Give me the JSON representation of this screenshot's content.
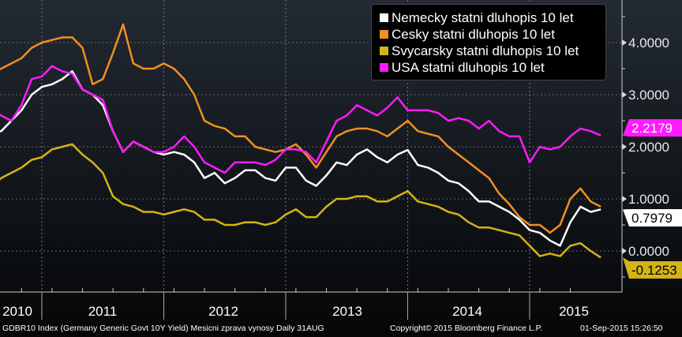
{
  "chart_data": {
    "type": "line",
    "x": [
      "2010-08",
      "2010-09",
      "2010-10",
      "2010-11",
      "2010-12",
      "2011-01",
      "2011-02",
      "2011-03",
      "2011-04",
      "2011-05",
      "2011-06",
      "2011-07",
      "2011-08",
      "2011-09",
      "2011-10",
      "2011-11",
      "2011-12",
      "2012-01",
      "2012-02",
      "2012-03",
      "2012-04",
      "2012-05",
      "2012-06",
      "2012-07",
      "2012-08",
      "2012-09",
      "2012-10",
      "2012-11",
      "2012-12",
      "2013-01",
      "2013-02",
      "2013-03",
      "2013-04",
      "2013-05",
      "2013-06",
      "2013-07",
      "2013-08",
      "2013-09",
      "2013-10",
      "2013-11",
      "2013-12",
      "2014-01",
      "2014-02",
      "2014-03",
      "2014-04",
      "2014-05",
      "2014-06",
      "2014-07",
      "2014-08",
      "2014-09",
      "2014-10",
      "2014-11",
      "2014-12",
      "2015-01",
      "2015-02",
      "2015-03",
      "2015-04",
      "2015-05",
      "2015-06",
      "2015-07",
      "2015-08"
    ],
    "series": [
      {
        "name": "Nemecky statni dluhopis 10 let",
        "color": "#ffffff",
        "last_label": "0.7979",
        "last_label_text": "#000000",
        "values": [
          2.3,
          2.3,
          2.5,
          2.7,
          3.0,
          3.15,
          3.2,
          3.3,
          3.45,
          3.1,
          3.0,
          2.8,
          2.3,
          1.9,
          2.1,
          2.0,
          1.9,
          1.85,
          1.9,
          1.85,
          1.7,
          1.4,
          1.5,
          1.3,
          1.4,
          1.55,
          1.55,
          1.4,
          1.35,
          1.6,
          1.6,
          1.35,
          1.25,
          1.45,
          1.7,
          1.65,
          1.85,
          1.95,
          1.8,
          1.7,
          1.85,
          1.94,
          1.65,
          1.6,
          1.5,
          1.35,
          1.3,
          1.15,
          0.95,
          0.95,
          0.85,
          0.75,
          0.6,
          0.4,
          0.35,
          0.2,
          0.1,
          0.55,
          0.85,
          0.75,
          0.7979
        ]
      },
      {
        "name": "Cesky statni dluhopis 10 let",
        "color": "#f0901e",
        "last_label": "",
        "last_label_text": "#000000",
        "values": [
          3.4,
          3.5,
          3.6,
          3.7,
          3.9,
          4.0,
          4.05,
          4.1,
          4.1,
          3.9,
          3.2,
          3.3,
          3.8,
          4.35,
          3.6,
          3.5,
          3.5,
          3.6,
          3.5,
          3.3,
          3.0,
          2.5,
          2.4,
          2.35,
          2.2,
          2.2,
          2.0,
          1.95,
          1.9,
          1.95,
          2.05,
          1.85,
          1.6,
          1.9,
          2.2,
          2.3,
          2.35,
          2.35,
          2.3,
          2.2,
          2.35,
          2.5,
          2.3,
          2.25,
          2.2,
          2.0,
          1.85,
          1.7,
          1.55,
          1.4,
          1.1,
          0.9,
          0.65,
          0.5,
          0.5,
          0.35,
          0.5,
          1.0,
          1.2,
          0.95,
          0.85
        ]
      },
      {
        "name": "Svycarsky statni dluhopis 10 let",
        "color": "#d4b414",
        "last_label": "-0.1253",
        "last_label_text": "#000000",
        "values": [
          1.2,
          1.4,
          1.5,
          1.6,
          1.75,
          1.8,
          1.95,
          2.0,
          2.05,
          1.85,
          1.7,
          1.5,
          1.05,
          0.9,
          0.85,
          0.75,
          0.75,
          0.7,
          0.75,
          0.8,
          0.75,
          0.6,
          0.6,
          0.5,
          0.5,
          0.55,
          0.55,
          0.5,
          0.55,
          0.7,
          0.8,
          0.65,
          0.65,
          0.85,
          1.0,
          1.0,
          1.05,
          1.05,
          0.95,
          0.95,
          1.05,
          1.15,
          0.95,
          0.9,
          0.85,
          0.75,
          0.7,
          0.55,
          0.45,
          0.45,
          0.4,
          0.35,
          0.3,
          0.1,
          -0.1,
          -0.05,
          -0.1,
          0.1,
          0.15,
          0.0,
          -0.1253
        ]
      },
      {
        "name": "USA statni dluhopis 10 let",
        "color": "#ff1aff",
        "last_label": "2.2179",
        "last_label_text": "#ffffff",
        "values": [
          2.7,
          2.6,
          2.5,
          2.8,
          3.3,
          3.35,
          3.55,
          3.45,
          3.4,
          3.1,
          3.0,
          2.9,
          2.3,
          1.9,
          2.1,
          2.0,
          1.9,
          1.9,
          2.0,
          2.2,
          2.0,
          1.7,
          1.6,
          1.5,
          1.7,
          1.7,
          1.7,
          1.65,
          1.75,
          1.95,
          1.95,
          1.9,
          1.7,
          2.1,
          2.5,
          2.6,
          2.8,
          2.7,
          2.6,
          2.75,
          2.95,
          2.7,
          2.7,
          2.7,
          2.65,
          2.5,
          2.55,
          2.5,
          2.35,
          2.5,
          2.3,
          2.2,
          2.2,
          1.7,
          2.0,
          1.95,
          2.0,
          2.2,
          2.35,
          2.3,
          2.2179
        ]
      }
    ],
    "x_tick_labels": [
      "2010",
      "2011",
      "2012",
      "2013",
      "2014",
      "2015"
    ],
    "y_tick_labels": [
      "0.0000",
      "1.0000",
      "2.0000",
      "3.0000",
      "4.0000"
    ],
    "y_ticks": [
      0,
      1,
      2,
      3,
      4
    ],
    "ylim": [
      -0.5,
      4.8
    ],
    "grid": true,
    "legend": "top-right"
  },
  "footer": {
    "left": "GDBR10 Index (Germany Generic Govt 10Y Yield) Mesicni zprava vynosy  Daily 31AUG",
    "center": "Copyright© 2015 Bloomberg Finance L.P.",
    "right": "01-Sep-2015 15:26:50"
  }
}
